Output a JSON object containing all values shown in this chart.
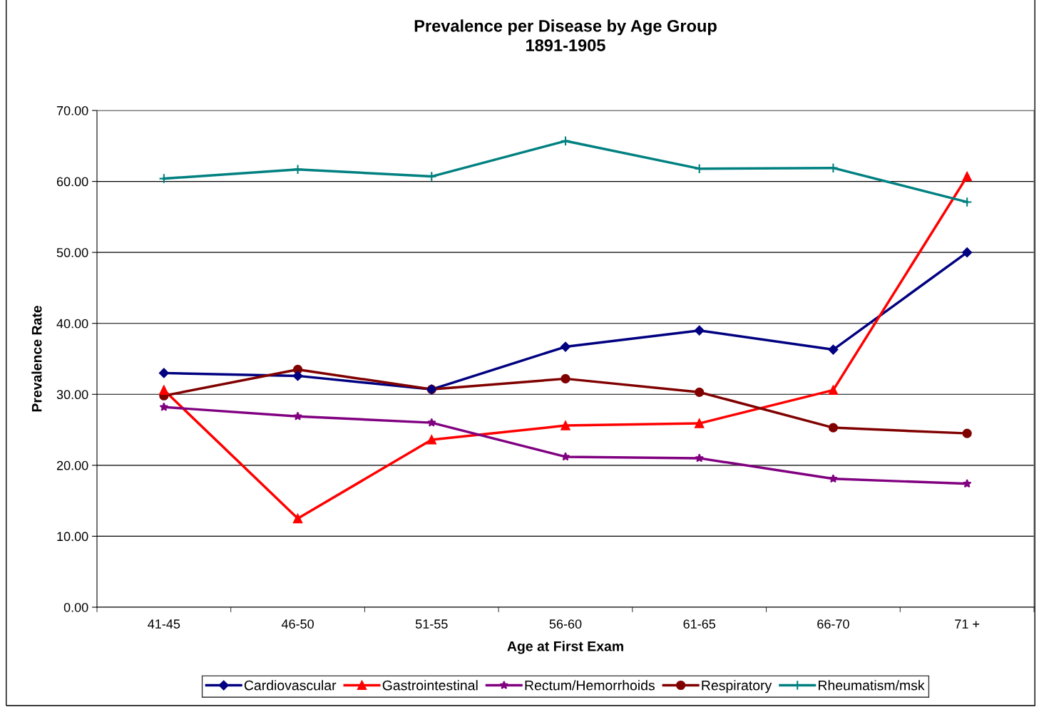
{
  "chart_data": {
    "type": "line",
    "title": "Prevalence per Disease by Age Group\n1891-1905",
    "xlabel": "Age at First Exam",
    "ylabel": "Prevalence Rate",
    "categories": [
      "41-45",
      "46-50",
      "51-55",
      "56-60",
      "61-65",
      "66-70",
      "71 +"
    ],
    "series": [
      {
        "name": "Cardiovascular",
        "color": "#000080",
        "marker": "diamond",
        "values": [
          33.0,
          32.6,
          30.7,
          36.7,
          39.0,
          36.3,
          50.0
        ]
      },
      {
        "name": "Gastrointestinal",
        "color": "#ff0000",
        "marker": "triangle",
        "values": [
          30.6,
          12.5,
          23.6,
          25.6,
          25.9,
          30.6,
          60.7
        ]
      },
      {
        "name": "Rectum/Hemorrhoids",
        "color": "#800080",
        "marker": "star",
        "values": [
          28.2,
          26.9,
          26.0,
          21.2,
          21.0,
          18.1,
          17.4
        ]
      },
      {
        "name": "Respiratory",
        "color": "#800000",
        "marker": "circle",
        "values": [
          29.8,
          33.5,
          30.7,
          32.2,
          30.3,
          25.3,
          24.5
        ]
      },
      {
        "name": "Rheumatism/msk",
        "color": "#008080",
        "marker": "cross",
        "values": [
          60.4,
          61.7,
          60.7,
          65.7,
          61.8,
          61.9,
          57.1
        ]
      }
    ],
    "ylim": [
      0,
      70
    ],
    "yticks": [
      {
        "value": 0,
        "label": "0.00"
      },
      {
        "value": 10,
        "label": "10.00"
      },
      {
        "value": 20,
        "label": "20.00"
      },
      {
        "value": 30,
        "label": "30.00"
      },
      {
        "value": 40,
        "label": "40.00"
      },
      {
        "value": 50,
        "label": "50.00"
      },
      {
        "value": 60,
        "label": "60.00"
      },
      {
        "value": 70,
        "label": "70.00"
      }
    ],
    "grid": "y",
    "legend": "bottom",
    "line_style": "solid"
  }
}
